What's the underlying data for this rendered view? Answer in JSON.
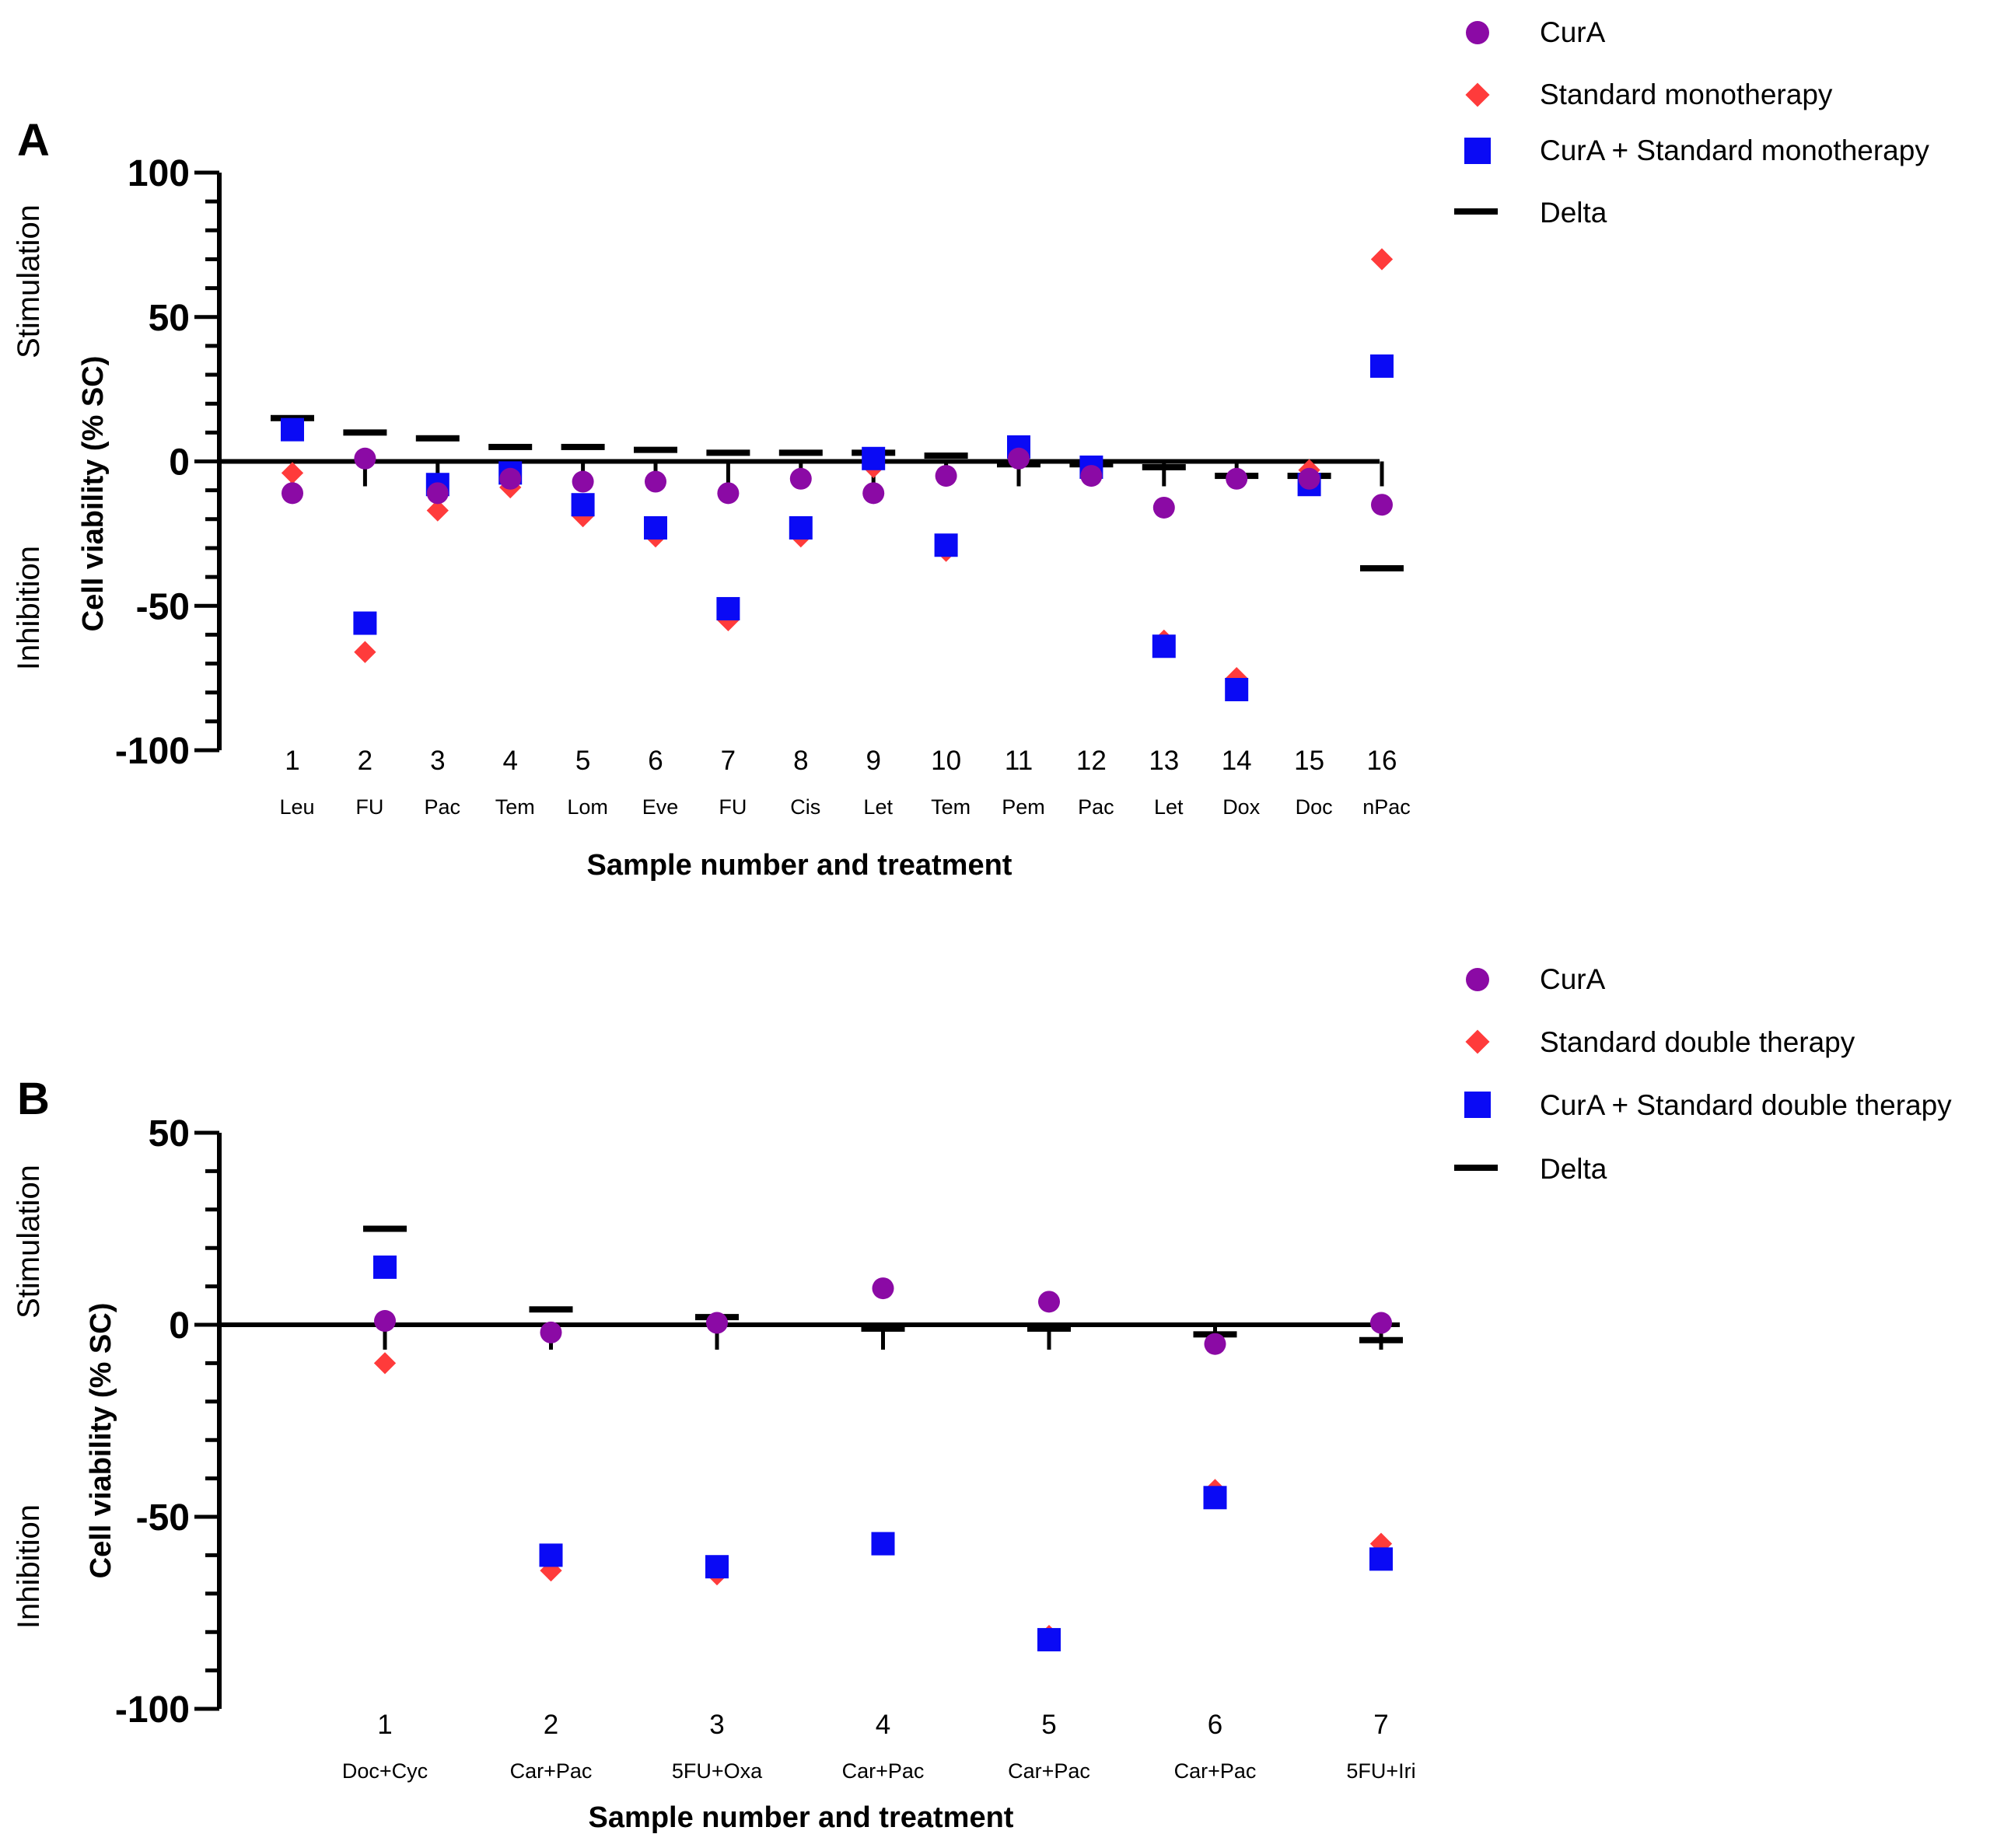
{
  "panels": [
    {
      "letter": "A",
      "upper_label": "Stimulation",
      "lower_label": "Inhibition",
      "legend": [
        "CurA",
        "Standard monotherapy",
        "CurA + Standard monotherapy",
        "Delta"
      ]
    },
    {
      "letter": "B",
      "upper_label": "Stimulation",
      "lower_label": "Inhibition",
      "legend": [
        "CurA",
        "Standard double therapy",
        "CurA + Standard double therapy",
        "Delta"
      ]
    }
  ],
  "colors": {
    "cura": "#8B0AA5",
    "standard": "#FF3B3B",
    "combined": "#0A0AF5",
    "delta": "#000000"
  },
  "chart_data": [
    {
      "type": "scatter",
      "ylabel": "Cell viability (% SC)",
      "xlabel": "Sample number and treatment",
      "ylim": [
        -100,
        100
      ],
      "yticks": [
        100,
        50,
        0,
        -50,
        -100
      ],
      "categories": [
        "1",
        "2",
        "3",
        "4",
        "5",
        "6",
        "7",
        "8",
        "9",
        "10",
        "11",
        "12",
        "13",
        "14",
        "15",
        "16"
      ],
      "treatments": [
        "Leu",
        "FU",
        "Pac",
        "Tem",
        "Lom",
        "Eve",
        "FU",
        "Cis",
        "Let",
        "Tem",
        "Pem",
        "Pac",
        "Let",
        "Dox",
        "Doc",
        "nPac"
      ],
      "series": [
        {
          "name": "CurA",
          "marker": "circle",
          "values": [
            -11,
            1,
            -11,
            -6,
            -7,
            -7,
            -11,
            -6,
            -11,
            -5,
            1,
            -5,
            -16,
            -6,
            -6,
            -15
          ]
        },
        {
          "name": "Standard monotherapy",
          "marker": "diamond",
          "values": [
            -4,
            -66,
            -17,
            -9,
            -19,
            -26,
            -55,
            -26,
            -2,
            -31,
            4,
            -2,
            -62,
            -75,
            -3,
            70
          ]
        },
        {
          "name": "CurA + Standard monotherapy",
          "marker": "square",
          "values": [
            11,
            -56,
            -8,
            -4,
            -15,
            -23,
            -51,
            -23,
            1,
            -29,
            5,
            -2,
            -64,
            -79,
            -8,
            33
          ]
        },
        {
          "name": "Delta",
          "marker": "dash",
          "values": [
            15,
            10,
            8,
            5,
            5,
            4,
            3,
            3,
            3,
            2,
            -1,
            -1,
            -2,
            -5,
            -5,
            -37
          ]
        }
      ],
      "legend": "top-right",
      "grid": false
    },
    {
      "type": "scatter",
      "ylabel": "Cell viability (% SC)",
      "xlabel": "Sample number and treatment",
      "ylim": [
        -100,
        50
      ],
      "yticks": [
        50,
        0,
        -50,
        -100
      ],
      "categories": [
        "1",
        "2",
        "3",
        "4",
        "5",
        "6",
        "7"
      ],
      "treatments": [
        "Doc+Cyc",
        "Car+Pac",
        "5FU+Oxa",
        "Car+Pac",
        "Car+Pac",
        "Car+Pac",
        "5FU+Iri"
      ],
      "series": [
        {
          "name": "CurA",
          "marker": "circle",
          "values": [
            1,
            -2,
            0.5,
            9.5,
            6,
            -5,
            0.5
          ]
        },
        {
          "name": "Standard double therapy",
          "marker": "diamond",
          "values": [
            -10,
            -64,
            -65,
            -57,
            -81,
            -43,
            -57
          ]
        },
        {
          "name": "CurA + Standard double therapy",
          "marker": "square",
          "values": [
            15,
            -60,
            -63,
            -57,
            -82,
            -45,
            -61
          ]
        },
        {
          "name": "Delta",
          "marker": "dash",
          "values": [
            25,
            4,
            2,
            -1,
            -1,
            -2.5,
            -4
          ]
        }
      ],
      "legend": "top-right",
      "grid": false
    }
  ]
}
